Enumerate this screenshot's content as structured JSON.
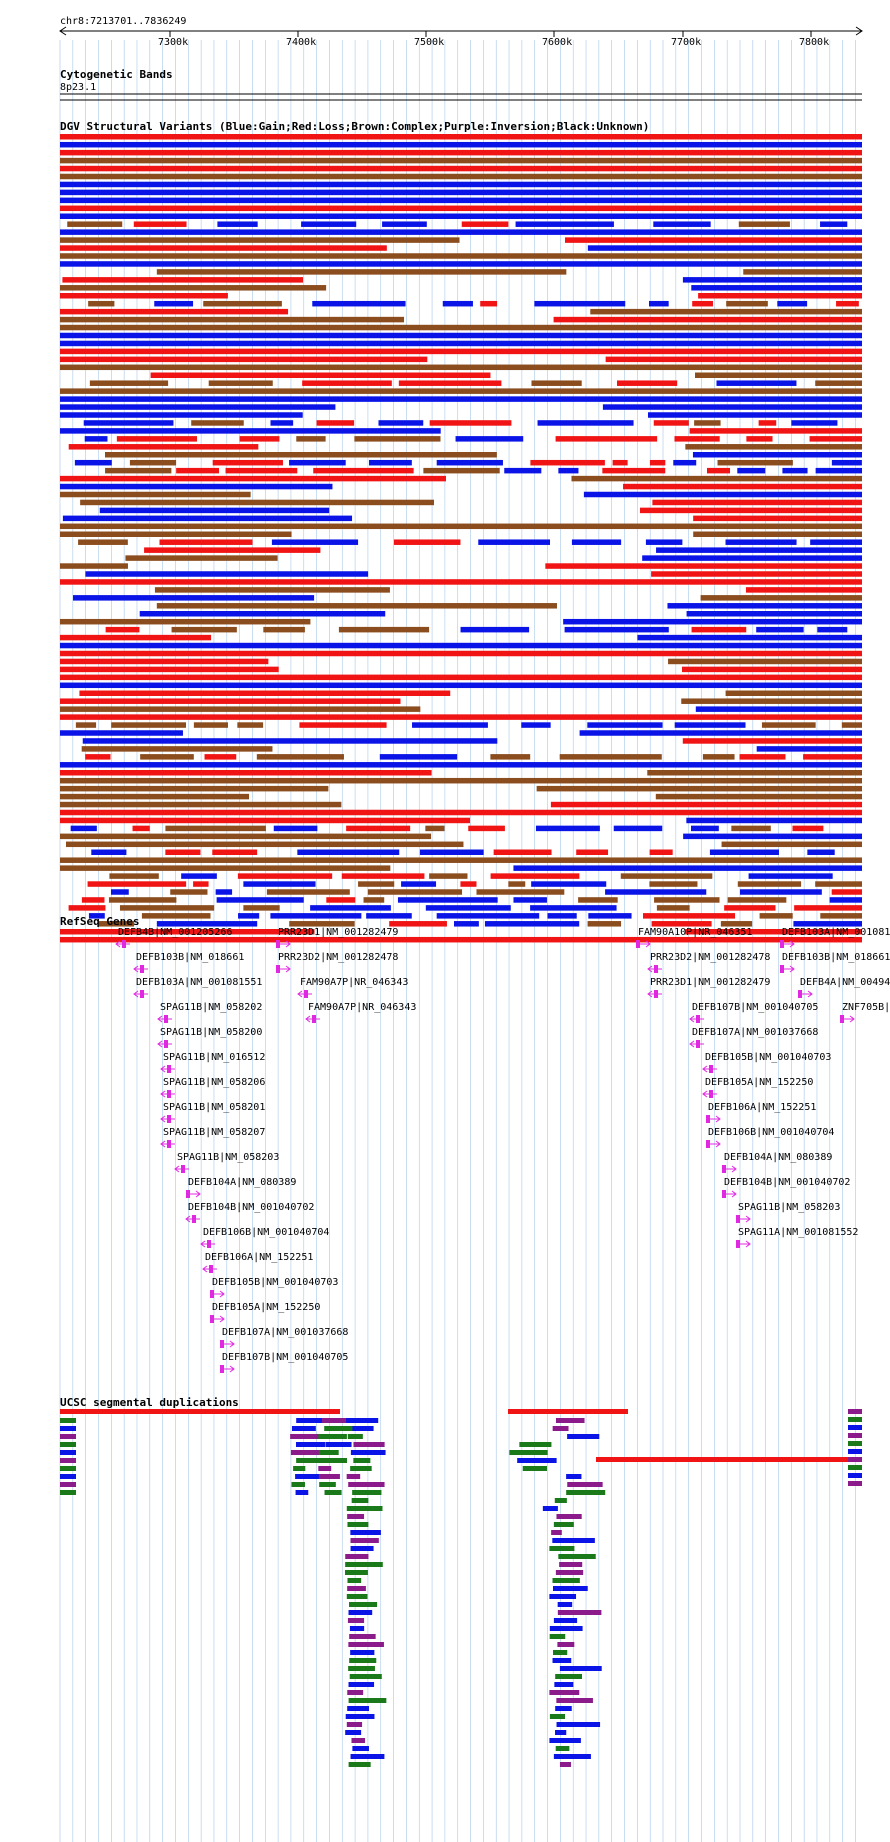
{
  "header": {
    "region": "chr8:7213701..7836249",
    "ticks": [
      "7300k",
      "7400k",
      "7500k",
      "7600k",
      "7700k",
      "7800k"
    ]
  },
  "tracks": {
    "cytoband_title": "Cytogenetic Bands",
    "cytoband_label": "8p23.1",
    "dgv_title": "DGV Structural Variants (Blue:Gain;Red:Loss;Brown:Complex;Purple:Inversion;Black:Unknown)",
    "refseq_title": "RefSeq Genes",
    "segdup_title": "UCSC segmental duplications"
  },
  "colors": {
    "gain": "#0a14e6",
    "loss": "#f01414",
    "complex": "#8b4d1e",
    "inversion": "#8b1a8b",
    "gene": "#e028e0",
    "segdup_green": "#1a7a1a",
    "grid": "#a8c8e8"
  },
  "genes": [
    {
      "label": "DEFB4B|NM_001205266",
      "dir": "left"
    },
    {
      "label": "DEFB103B|NM_018661",
      "dir": "left"
    },
    {
      "label": "DEFB103A|NM_001081551",
      "dir": "left"
    },
    {
      "label": "SPAG11B|NM_058202",
      "dir": "left"
    },
    {
      "label": "SPAG11B|NM_058200",
      "dir": "left"
    },
    {
      "label": "SPAG11B|NM_016512",
      "dir": "left"
    },
    {
      "label": "SPAG11B|NM_058206",
      "dir": "left"
    },
    {
      "label": "SPAG11B|NM_058201",
      "dir": "left"
    },
    {
      "label": "SPAG11B|NM_058207",
      "dir": "left"
    },
    {
      "label": "SPAG11B|NM_058203",
      "dir": "left"
    },
    {
      "label": "DEFB104A|NM_080389",
      "dir": "right"
    },
    {
      "label": "DEFB104B|NM_001040702",
      "dir": "left"
    },
    {
      "label": "DEFB106B|NM_001040704",
      "dir": "left"
    },
    {
      "label": "DEFB106A|NM_152251",
      "dir": "left"
    },
    {
      "label": "DEFB105B|NM_001040703",
      "dir": "right"
    },
    {
      "label": "DEFB105A|NM_152250",
      "dir": "right"
    },
    {
      "label": "DEFB107A|NM_001037668",
      "dir": "right"
    },
    {
      "label": "DEFB107B|NM_001040705",
      "dir": "right"
    },
    {
      "label": "PRR23D1|NM_001282479",
      "dir": "right"
    },
    {
      "label": "PRR23D2|NM_001282478",
      "dir": "right"
    },
    {
      "label": "FAM90A7P|NR_046343",
      "dir": "left"
    },
    {
      "label": "FAM90A7P|NR_046343",
      "dir": "left"
    },
    {
      "label": "FAM90A10P|NR_046351",
      "dir": "right"
    },
    {
      "label": "PRR23D2|NM_001282478",
      "dir": "left"
    },
    {
      "label": "PRR23D1|NM_001282479",
      "dir": "left"
    },
    {
      "label": "DEFB107B|NM_001040705",
      "dir": "left"
    },
    {
      "label": "DEFB107A|NM_001037668",
      "dir": "left"
    },
    {
      "label": "DEFB105B|NM_001040703",
      "dir": "left"
    },
    {
      "label": "DEFB105A|NM_152250",
      "dir": "left"
    },
    {
      "label": "DEFB106A|NM_152251",
      "dir": "right"
    },
    {
      "label": "DEFB106B|NM_001040704",
      "dir": "right"
    },
    {
      "label": "DEFB104A|NM_080389",
      "dir": "right"
    },
    {
      "label": "DEFB104B|NM_001040702",
      "dir": "right"
    },
    {
      "label": "SPAG11B|NM_058203",
      "dir": "right"
    },
    {
      "label": "SPAG11A|NM_001081552",
      "dir": "right"
    },
    {
      "label": "DEFB103A|NM_001081",
      "dir": "right"
    },
    {
      "label": "DEFB103B|NM_018661",
      "dir": "right"
    },
    {
      "label": "DEFB4A|NM_00494",
      "dir": "right"
    },
    {
      "label": "ZNF705B|I",
      "dir": "right"
    }
  ]
}
